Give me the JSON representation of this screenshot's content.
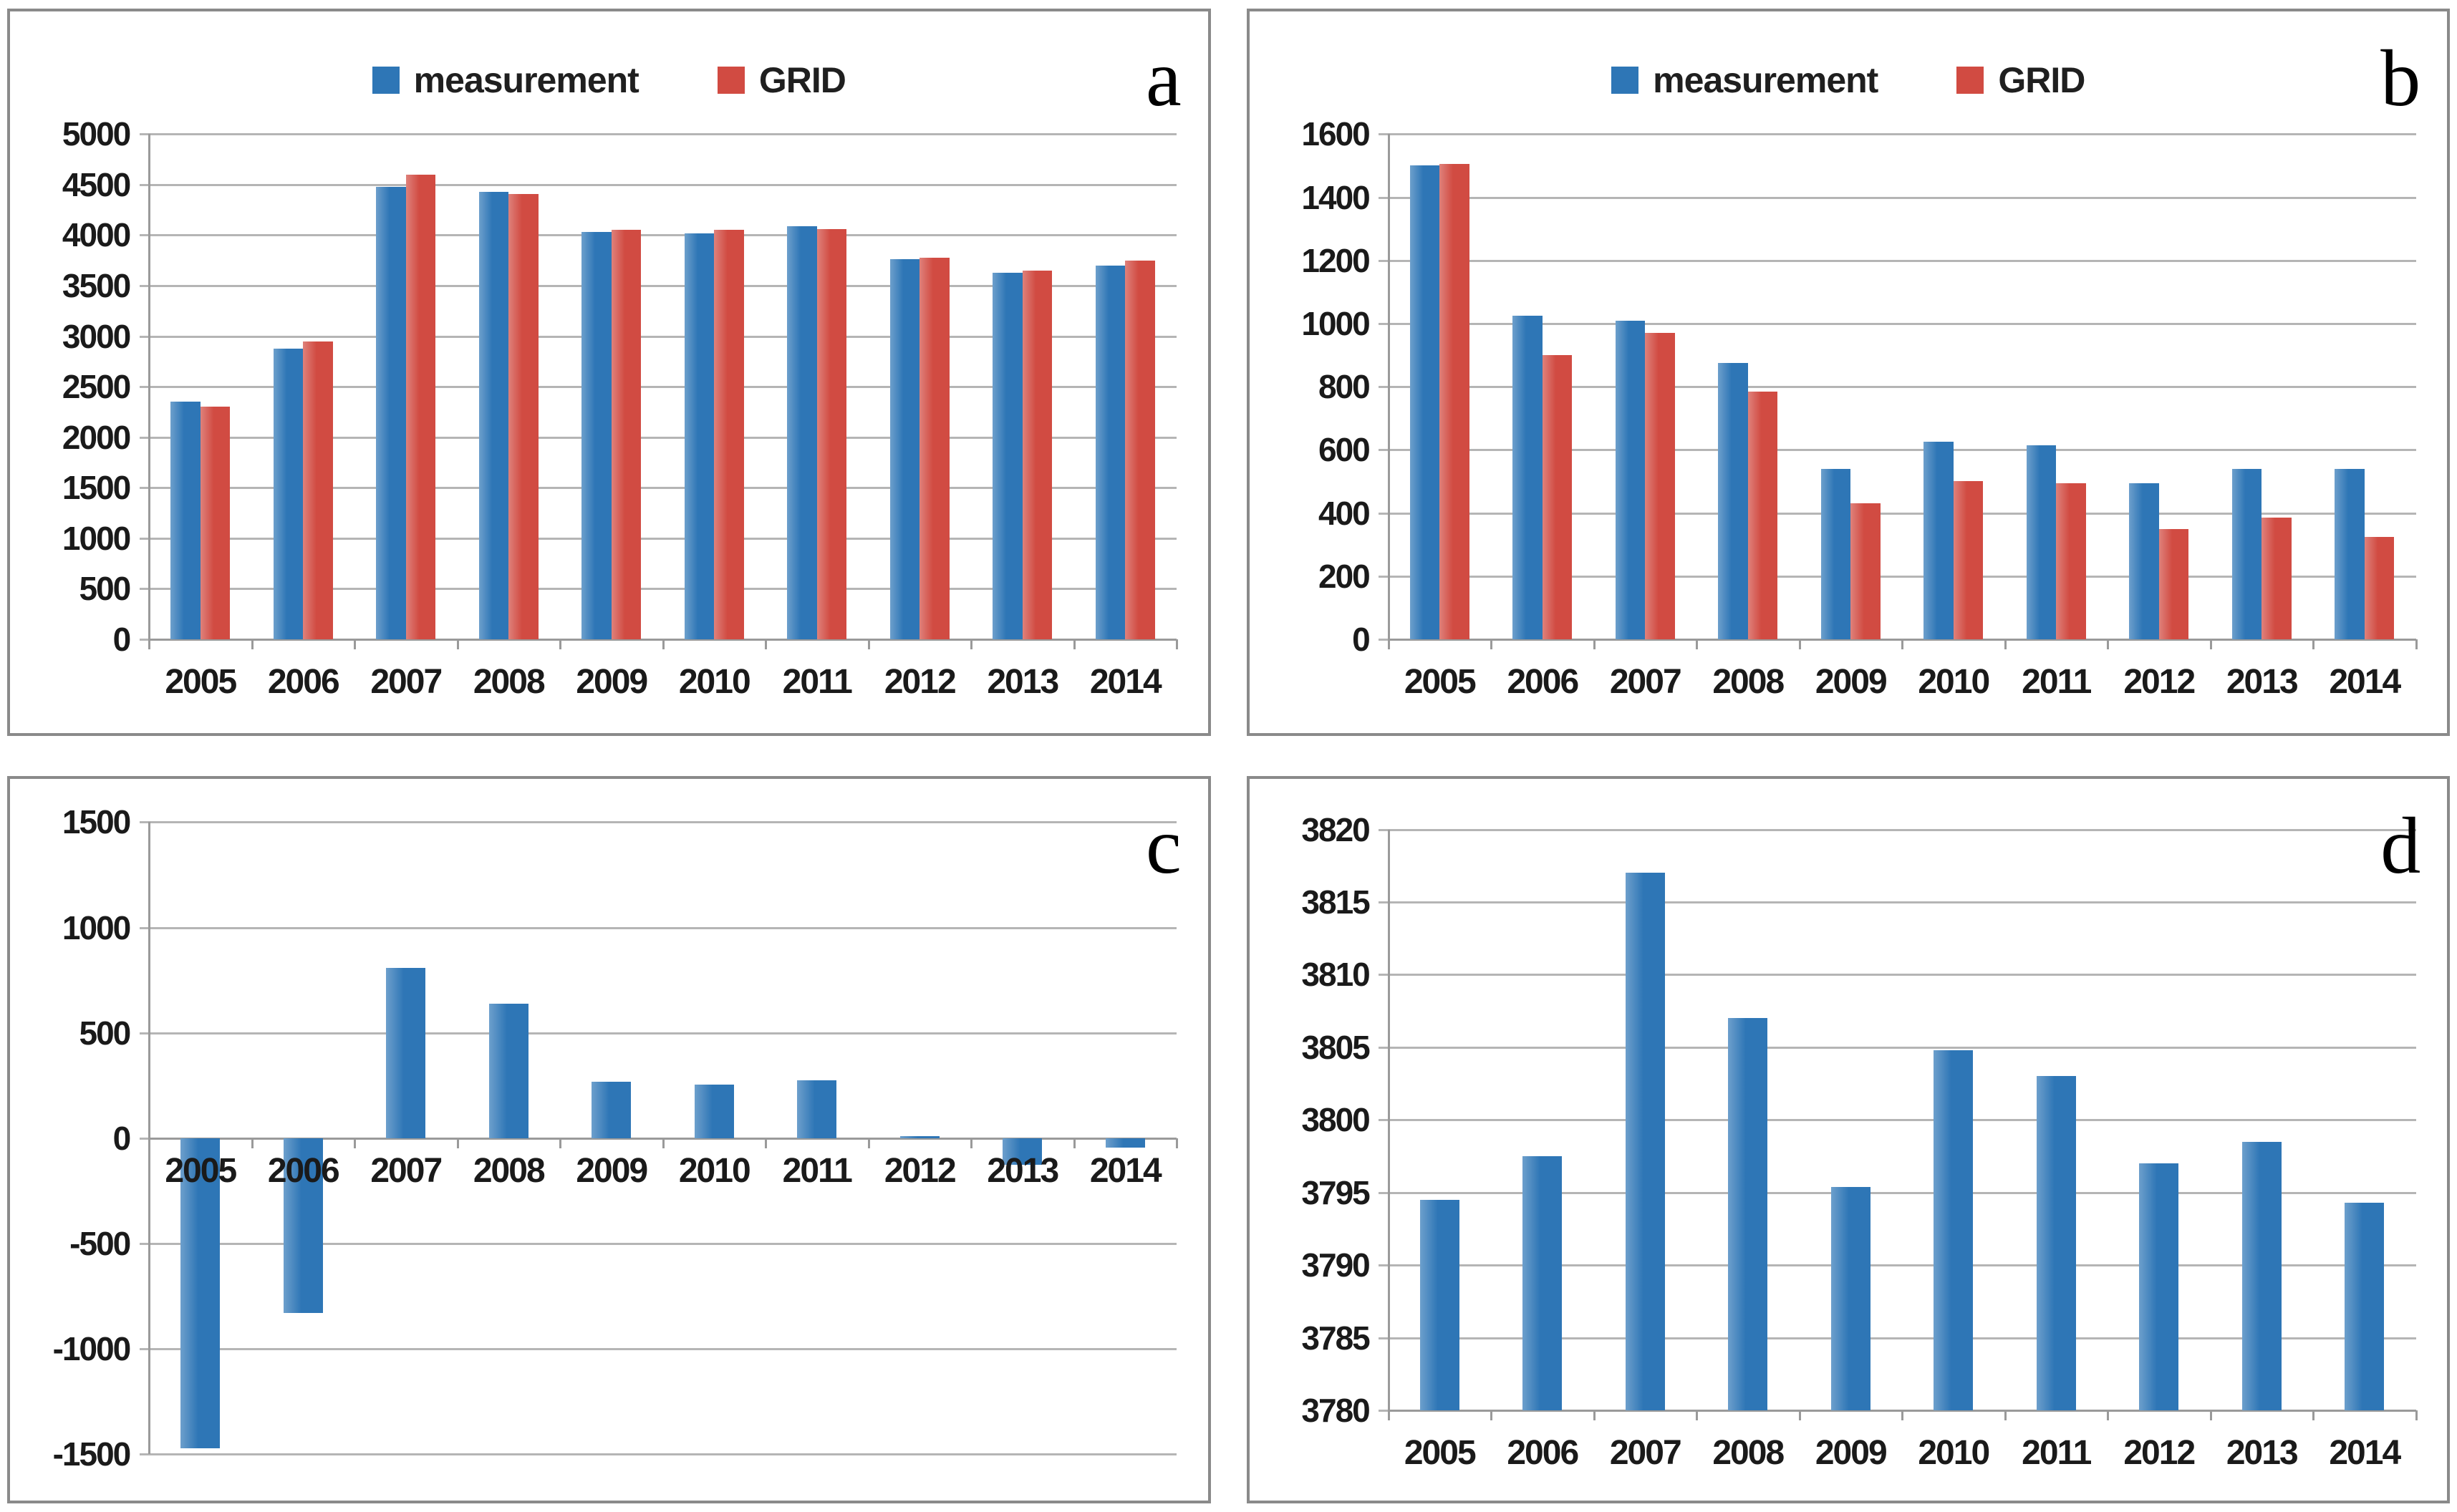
{
  "page": {
    "background": "#ffffff"
  },
  "colors": {
    "measurement_blue": "#2e76b6",
    "grid_red": "#d14b42",
    "gridline_gray": "#b5b5b5",
    "axis_gray": "#9a9a9a",
    "panel_border_gray": "#8a8a8a",
    "tick_text": "#1a1a1a",
    "letter_black": "#000000"
  },
  "legend": {
    "measurement_label": "measurement",
    "grid_label": "GRID"
  },
  "chart_data": [
    {
      "type": "bar",
      "panel_letter": "a",
      "title": "",
      "xlabel": "",
      "ylabel": "",
      "categories": [
        "2005",
        "2006",
        "2007",
        "2008",
        "2009",
        "2010",
        "2011",
        "2012",
        "2013",
        "2014"
      ],
      "series": [
        {
          "name": "measurement",
          "color": "measurement_blue",
          "values": [
            2350,
            2880,
            4480,
            4430,
            4030,
            4020,
            4090,
            3760,
            3630,
            3700
          ]
        },
        {
          "name": "GRID",
          "color": "grid_red",
          "values": [
            2300,
            2950,
            4600,
            4410,
            4050,
            4050,
            4060,
            3775,
            3650,
            3745
          ]
        }
      ],
      "ylim": [
        0,
        5000
      ],
      "ystep": 500,
      "grid": true,
      "legend_position": "top-center"
    },
    {
      "type": "bar",
      "panel_letter": "b",
      "title": "",
      "xlabel": "",
      "ylabel": "",
      "categories": [
        "2005",
        "2006",
        "2007",
        "2008",
        "2009",
        "2010",
        "2011",
        "2012",
        "2013",
        "2014"
      ],
      "series": [
        {
          "name": "measurement",
          "color": "measurement_blue",
          "values": [
            1500,
            1025,
            1010,
            875,
            540,
            625,
            615,
            495,
            540,
            540
          ]
        },
        {
          "name": "GRID",
          "color": "grid_red",
          "values": [
            1505,
            900,
            970,
            785,
            430,
            500,
            495,
            350,
            385,
            325
          ]
        }
      ],
      "ylim": [
        0,
        1600
      ],
      "ystep": 200,
      "grid": true,
      "legend_position": "top-center"
    },
    {
      "type": "bar",
      "panel_letter": "c",
      "title": "",
      "xlabel": "",
      "ylabel": "",
      "categories": [
        "2005",
        "2006",
        "2007",
        "2008",
        "2009",
        "2010",
        "2011",
        "2012",
        "2013",
        "2014"
      ],
      "series": [
        {
          "color": "measurement_blue",
          "values": [
            -1470,
            -830,
            810,
            640,
            270,
            255,
            275,
            10,
            -125,
            -45
          ]
        }
      ],
      "ylim": [
        -1500,
        1500
      ],
      "ystep": 500,
      "grid": true,
      "legend_position": "none"
    },
    {
      "type": "bar",
      "panel_letter": "d",
      "title": "",
      "xlabel": "",
      "ylabel": "",
      "categories": [
        "2005",
        "2006",
        "2007",
        "2008",
        "2009",
        "2010",
        "2011",
        "2012",
        "2013",
        "2014"
      ],
      "series": [
        {
          "color": "measurement_blue",
          "values": [
            3794.5,
            3797.5,
            3817,
            3807,
            3795.4,
            3804.8,
            3803,
            3797,
            3798.5,
            3794.3
          ]
        }
      ],
      "ylim": [
        3780,
        3820
      ],
      "ystep": 5,
      "grid": true,
      "legend_position": "none"
    }
  ]
}
